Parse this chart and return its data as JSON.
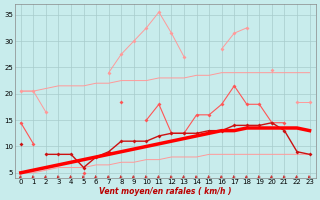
{
  "x": [
    0,
    1,
    2,
    3,
    4,
    5,
    6,
    7,
    8,
    9,
    10,
    11,
    12,
    13,
    14,
    15,
    16,
    17,
    18,
    19,
    20,
    21,
    22,
    23
  ],
  "line_gust": [
    20.5,
    20.5,
    16.5,
    null,
    null,
    null,
    null,
    24.0,
    27.5,
    30.0,
    32.5,
    35.5,
    31.5,
    27.0,
    null,
    null,
    28.5,
    31.5,
    32.5,
    null,
    24.5,
    null,
    18.5,
    18.5
  ],
  "line_mean": [
    14.5,
    10.5,
    null,
    null,
    null,
    5.0,
    null,
    null,
    18.5,
    null,
    15.0,
    18.0,
    12.5,
    12.5,
    16.0,
    16.0,
    18.0,
    21.5,
    18.0,
    18.0,
    14.5,
    14.5,
    null,
    null
  ],
  "line_smooth": [
    10.5,
    null,
    8.5,
    8.5,
    8.5,
    6.0,
    8.0,
    9.0,
    11.0,
    11.0,
    11.0,
    12.0,
    12.5,
    12.5,
    12.5,
    13.0,
    13.0,
    14.0,
    14.0,
    14.0,
    14.5,
    13.0,
    9.0,
    8.5
  ],
  "line_reg_upper": [
    20.5,
    20.5,
    21.0,
    21.5,
    21.5,
    21.5,
    22.0,
    22.0,
    22.5,
    22.5,
    22.5,
    23.0,
    23.0,
    23.0,
    23.5,
    23.5,
    24.0,
    24.0,
    24.0,
    24.0,
    24.0,
    24.0,
    24.0,
    24.0
  ],
  "line_reg_lower": [
    5.0,
    5.0,
    5.5,
    6.0,
    6.0,
    6.0,
    6.5,
    6.5,
    7.0,
    7.0,
    7.5,
    7.5,
    8.0,
    8.0,
    8.0,
    8.5,
    8.5,
    8.5,
    8.5,
    8.5,
    8.5,
    8.5,
    8.5,
    8.5
  ],
  "line_trend": [
    5.0,
    5.5,
    6.0,
    6.5,
    7.0,
    7.5,
    8.0,
    8.5,
    9.0,
    9.5,
    10.0,
    10.5,
    11.0,
    11.5,
    12.0,
    12.5,
    13.0,
    13.0,
    13.5,
    13.5,
    13.5,
    13.5,
    13.5,
    13.0
  ],
  "bg_color": "#c8ecec",
  "grid_color": "#a8cccc",
  "color_light_pink": "#ff9999",
  "color_medium_red": "#ff5555",
  "color_dark_red": "#cc1111",
  "color_bright_red": "#ff0000",
  "color_arrow": "#cc2222",
  "yticks": [
    5,
    10,
    15,
    20,
    25,
    30,
    35
  ],
  "xticks": [
    0,
    1,
    2,
    3,
    4,
    5,
    6,
    7,
    8,
    9,
    10,
    11,
    12,
    13,
    14,
    15,
    16,
    17,
    18,
    19,
    20,
    21,
    22,
    23
  ],
  "xlim": [
    -0.5,
    23.5
  ],
  "ylim": [
    4.0,
    37
  ],
  "xlabel": "Vent moyen/en rafales ( km/h )"
}
